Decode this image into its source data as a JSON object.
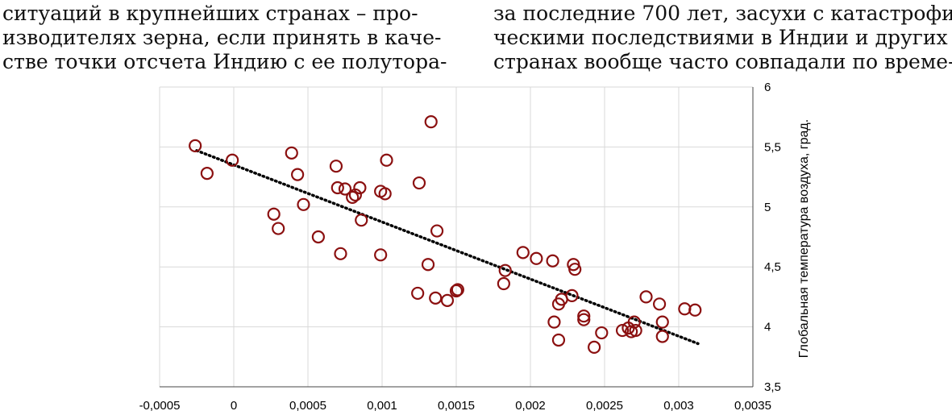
{
  "text": {
    "left_lines": [
      "ситуаций в крупнейших странах – про-",
      "изводителях зерна, если принять в каче-",
      "стве точки отсчета Индию с ее полутора-"
    ],
    "right_lines": [
      "за последние 700 лет, засухи с катастрофи-",
      "ческими последствиями в Индии и других",
      "странах вообще часто совпадали по време-"
    ]
  },
  "colors": {
    "marker": "#8b1010",
    "trend": "#000000",
    "grid": "#d9d9d9"
  },
  "chart_data": {
    "type": "scatter",
    "ylabel": "Глобальная температура воздуха, град.",
    "xlabel": "",
    "xlim": [
      -0.0005,
      0.0035
    ],
    "ylim": [
      3.5,
      6
    ],
    "x_ticks": [
      "-0,0005",
      "0",
      "0,0005",
      "0,001",
      "0,0015",
      "0,002",
      "0,0025",
      "0,003",
      "0,0035"
    ],
    "y_ticks": [
      "3,5",
      "4",
      "4,5",
      "5",
      "5,5",
      "6"
    ],
    "y_axis_side": "right",
    "grid": true,
    "trendline": {
      "style": "dotted",
      "x": [
        -0.00025,
        0.00313
      ],
      "y": [
        5.47,
        3.86
      ]
    },
    "points": [
      [
        -0.00026,
        5.51
      ],
      [
        -0.00018,
        5.28
      ],
      [
        -1e-05,
        5.39
      ],
      [
        0.00039,
        5.45
      ],
      [
        0.00043,
        5.27
      ],
      [
        0.00027,
        4.94
      ],
      [
        0.0003,
        4.82
      ],
      [
        0.00047,
        5.02
      ],
      [
        0.00057,
        4.75
      ],
      [
        0.00069,
        5.34
      ],
      [
        0.0007,
        5.16
      ],
      [
        0.00075,
        5.15
      ],
      [
        0.0008,
        5.08
      ],
      [
        0.00082,
        5.1
      ],
      [
        0.00085,
        5.16
      ],
      [
        0.00086,
        4.89
      ],
      [
        0.00072,
        4.61
      ],
      [
        0.00099,
        5.13
      ],
      [
        0.00102,
        5.11
      ],
      [
        0.00103,
        5.39
      ],
      [
        0.00099,
        4.6
      ],
      [
        0.00125,
        5.2
      ],
      [
        0.00133,
        5.71
      ],
      [
        0.00131,
        4.52
      ],
      [
        0.00137,
        4.8
      ],
      [
        0.00124,
        4.28
      ],
      [
        0.00136,
        4.24
      ],
      [
        0.00144,
        4.22
      ],
      [
        0.0015,
        4.3
      ],
      [
        0.00151,
        4.31
      ],
      [
        0.00182,
        4.36
      ],
      [
        0.00183,
        4.47
      ],
      [
        0.00195,
        4.62
      ],
      [
        0.00204,
        4.57
      ],
      [
        0.00215,
        4.55
      ],
      [
        0.00216,
        4.04
      ],
      [
        0.00219,
        4.19
      ],
      [
        0.00221,
        4.23
      ],
      [
        0.00219,
        3.89
      ],
      [
        0.00228,
        4.26
      ],
      [
        0.00229,
        4.52
      ],
      [
        0.0023,
        4.48
      ],
      [
        0.00236,
        4.09
      ],
      [
        0.00236,
        4.06
      ],
      [
        0.00243,
        3.83
      ],
      [
        0.00248,
        3.95
      ],
      [
        0.00262,
        3.97
      ],
      [
        0.00266,
        3.99
      ],
      [
        0.00268,
        3.96
      ],
      [
        0.0027,
        4.04
      ],
      [
        0.00271,
        3.97
      ],
      [
        0.00278,
        4.25
      ],
      [
        0.00287,
        4.19
      ],
      [
        0.00289,
        4.04
      ],
      [
        0.00289,
        3.92
      ],
      [
        0.00304,
        4.15
      ],
      [
        0.00311,
        4.14
      ]
    ]
  }
}
